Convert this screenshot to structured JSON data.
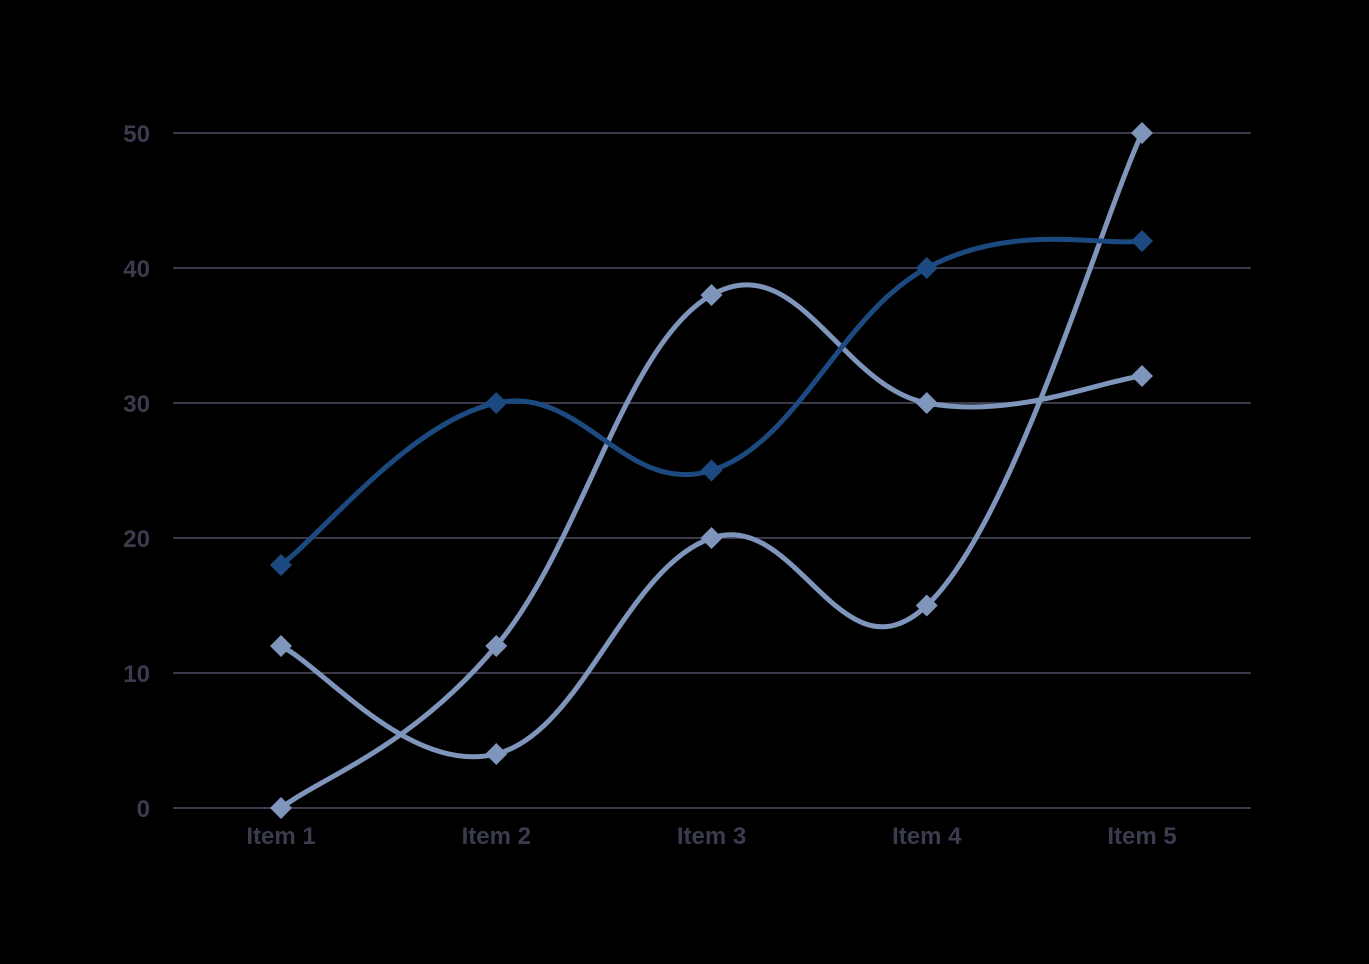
{
  "chart_data": {
    "type": "line",
    "title": "",
    "xlabel": "",
    "ylabel": "",
    "categories": [
      "Item 1",
      "Item 2",
      "Item 3",
      "Item 4",
      "Item 5"
    ],
    "yticks": [
      "0",
      "10",
      "20",
      "30",
      "40",
      "50"
    ],
    "ylim": [
      0,
      50
    ],
    "grid": true,
    "smooth": true,
    "marker": "diamond",
    "background": "#000000",
    "grid_color": "#3a3a48",
    "series": [
      {
        "values": [
          12,
          4,
          20,
          15,
          50
        ],
        "color": "#7f95bb"
      },
      {
        "values": [
          0,
          12,
          38,
          30,
          32
        ],
        "color": "#7f95bb"
      },
      {
        "values": [
          18,
          30,
          25,
          40,
          42
        ],
        "color": "#1c4a80"
      }
    ]
  }
}
